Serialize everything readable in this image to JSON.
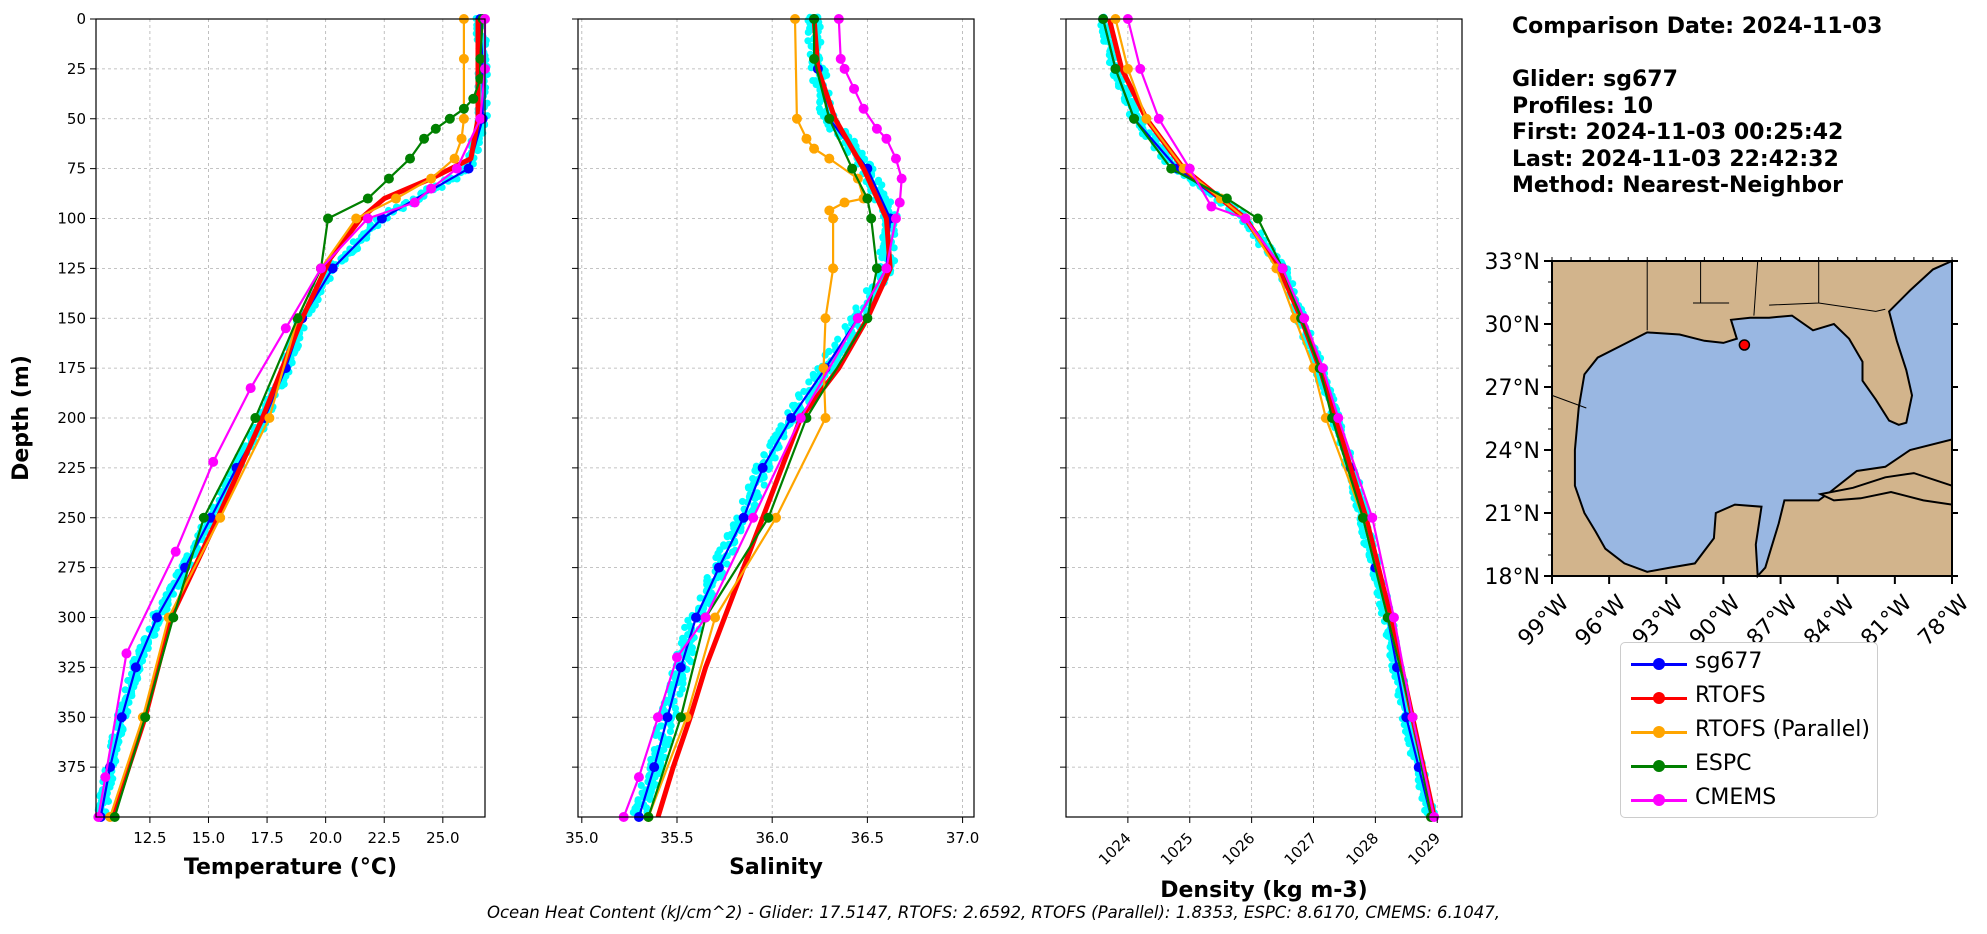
{
  "info": {
    "date_line": "Comparison Date: 2024-11-03",
    "glider_line": "Glider: sg677",
    "profiles_line": "Profiles: 10",
    "first_line": "First: 2024-11-03 00:25:42",
    "last_line": "Last: 2024-11-03 22:42:32",
    "method_line": "Method: Nearest-Neighbor"
  },
  "footer": "Ocean Heat Content (kJ/cm^2) - Glider: 17.5147,  RTOFS: 2.6592,  RTOFS (Parallel): 1.8353,  ESPC: 8.6170,  CMEMS: 6.1047,",
  "legend": [
    {
      "label": "sg677",
      "color": "#0000ff"
    },
    {
      "label": "RTOFS",
      "color": "#ff0000"
    },
    {
      "label": "RTOFS (Parallel)",
      "color": "#ffa500"
    },
    {
      "label": "ESPC",
      "color": "#008000"
    },
    {
      "label": "CMEMS",
      "color": "#ff00ff"
    }
  ],
  "colors": {
    "sg677": "#0000ff",
    "RTOFS": "#ff0000",
    "RTOFS (Parallel)": "#ffa500",
    "ESPC": "#008000",
    "CMEMS": "#ff00ff",
    "scatter": "#00ffff",
    "land": "#d2b48c",
    "ocean": "#99b7e2"
  },
  "chart_data": [
    {
      "type": "line",
      "xlabel": "Temperature (°C)",
      "ylabel": "Depth (m)",
      "xlim": [
        10.2,
        26.8
      ],
      "ylim": [
        400,
        0
      ],
      "y_inverted": true,
      "xticks": [
        "12.5",
        "15.0",
        "17.5",
        "20.0",
        "22.5",
        "25.0"
      ],
      "yticks": [
        "0",
        "25",
        "50",
        "75",
        "100",
        "125",
        "150",
        "175",
        "200",
        "225",
        "250",
        "275",
        "300",
        "325",
        "350",
        "375"
      ],
      "grid": true,
      "series": [
        {
          "name": "sg677",
          "depth": [
            0,
            25,
            50,
            75,
            100,
            125,
            150,
            175,
            200,
            225,
            250,
            275,
            300,
            325,
            350,
            375,
            400
          ],
          "values": [
            26.6,
            26.7,
            26.7,
            26.1,
            22.4,
            20.3,
            19.0,
            18.3,
            17.4,
            16.2,
            15.1,
            14.0,
            12.8,
            11.9,
            11.3,
            10.8,
            10.4
          ]
        },
        {
          "name": "RTOFS",
          "depth": [
            0,
            20,
            50,
            70,
            80,
            90,
            100,
            120,
            150,
            200,
            250,
            300,
            350,
            400
          ],
          "values": [
            26.5,
            26.5,
            26.5,
            26.2,
            24.5,
            22.5,
            21.5,
            20.2,
            19.0,
            17.3,
            15.4,
            13.4,
            12.3,
            10.9
          ]
        },
        {
          "name": "RTOFS (Parallel)",
          "depth": [
            0,
            20,
            50,
            60,
            70,
            80,
            90,
            100,
            125,
            150,
            200,
            250,
            300,
            350,
            400
          ],
          "values": [
            25.9,
            25.9,
            25.9,
            25.8,
            25.5,
            24.5,
            23.0,
            21.3,
            19.8,
            18.8,
            17.6,
            15.5,
            13.3,
            12.2,
            10.8
          ]
        },
        {
          "name": "ESPC",
          "depth": [
            0,
            20,
            30,
            40,
            45,
            50,
            55,
            60,
            70,
            80,
            90,
            100,
            125,
            150,
            200,
            250,
            300,
            350,
            400
          ],
          "values": [
            26.7,
            26.6,
            26.6,
            26.3,
            25.9,
            25.3,
            24.7,
            24.2,
            23.6,
            22.7,
            21.8,
            20.1,
            19.8,
            18.8,
            17.0,
            14.8,
            13.5,
            12.3,
            11.0
          ]
        },
        {
          "name": "CMEMS",
          "depth": [
            0,
            25,
            50,
            75,
            85,
            92,
            100,
            125,
            155,
            185,
            222,
            267,
            318,
            380,
            400
          ],
          "values": [
            26.8,
            26.8,
            26.6,
            25.6,
            24.5,
            23.8,
            21.8,
            19.8,
            18.3,
            16.8,
            15.2,
            13.6,
            11.5,
            10.6,
            10.3
          ]
        }
      ]
    },
    {
      "type": "line",
      "xlabel": "Salinity",
      "xlim": [
        34.98,
        37.06
      ],
      "ylim": [
        400,
        0
      ],
      "y_inverted": true,
      "xticks": [
        "35.0",
        "35.5",
        "36.0",
        "36.5",
        "37.0"
      ],
      "grid": true,
      "series": [
        {
          "name": "sg677",
          "depth": [
            0,
            25,
            50,
            75,
            100,
            125,
            150,
            175,
            200,
            225,
            250,
            275,
            300,
            325,
            350,
            375,
            400
          ],
          "values": [
            36.22,
            36.24,
            36.3,
            36.5,
            36.62,
            36.6,
            36.45,
            36.28,
            36.1,
            35.95,
            35.85,
            35.72,
            35.6,
            35.52,
            35.45,
            35.38,
            35.3
          ]
        },
        {
          "name": "RTOFS",
          "depth": [
            0,
            25,
            50,
            75,
            100,
            125,
            150,
            175,
            200,
            225,
            250,
            275,
            300,
            325,
            350,
            375,
            400
          ],
          "values": [
            36.22,
            36.24,
            36.33,
            36.48,
            36.6,
            36.62,
            36.5,
            36.35,
            36.15,
            36.05,
            35.95,
            35.85,
            35.75,
            35.65,
            35.57,
            35.48,
            35.4
          ]
        },
        {
          "name": "RTOFS (Parallel)",
          "depth": [
            0,
            50,
            60,
            65,
            70,
            80,
            90,
            92,
            96,
            100,
            125,
            150,
            175,
            200,
            250,
            300,
            350,
            400
          ],
          "values": [
            36.12,
            36.13,
            36.18,
            36.22,
            36.3,
            36.45,
            36.48,
            36.38,
            36.3,
            36.32,
            36.32,
            36.28,
            36.27,
            36.28,
            36.02,
            35.7,
            35.55,
            35.35
          ]
        },
        {
          "name": "ESPC",
          "depth": [
            0,
            20,
            50,
            75,
            90,
            100,
            125,
            150,
            200,
            250,
            300,
            350,
            400
          ],
          "values": [
            36.22,
            36.22,
            36.3,
            36.42,
            36.5,
            36.52,
            36.55,
            36.5,
            36.18,
            35.98,
            35.65,
            35.52,
            35.35
          ]
        },
        {
          "name": "CMEMS",
          "depth": [
            0,
            20,
            25,
            35,
            45,
            55,
            60,
            70,
            80,
            92,
            100,
            125,
            150,
            200,
            250,
            300,
            320,
            350,
            380,
            400
          ],
          "values": [
            36.35,
            36.36,
            36.38,
            36.43,
            36.48,
            36.55,
            36.6,
            36.65,
            36.68,
            36.67,
            36.65,
            36.6,
            36.45,
            36.15,
            35.9,
            35.65,
            35.5,
            35.4,
            35.3,
            35.22
          ]
        }
      ]
    },
    {
      "type": "line",
      "xlabel": "Density (kg m-3)",
      "xlim": [
        1023.0,
        1029.4
      ],
      "ylim": [
        400,
        0
      ],
      "y_inverted": true,
      "xticks": [
        "1024",
        "1025",
        "1026",
        "1027",
        "1028",
        "1029"
      ],
      "grid": true,
      "series": [
        {
          "name": "sg677",
          "depth": [
            0,
            25,
            50,
            75,
            100,
            125,
            150,
            175,
            200,
            225,
            250,
            275,
            300,
            325,
            350,
            375,
            400
          ],
          "values": [
            1023.6,
            1023.8,
            1024.1,
            1024.8,
            1025.9,
            1026.5,
            1026.8,
            1027.1,
            1027.35,
            1027.6,
            1027.8,
            1028.0,
            1028.2,
            1028.35,
            1028.5,
            1028.7,
            1028.9
          ]
        },
        {
          "name": "RTOFS",
          "depth": [
            0,
            25,
            50,
            75,
            100,
            125,
            150,
            175,
            200,
            250,
            300,
            350,
            400
          ],
          "values": [
            1023.7,
            1023.9,
            1024.3,
            1024.9,
            1025.9,
            1026.45,
            1026.8,
            1027.1,
            1027.35,
            1027.85,
            1028.25,
            1028.6,
            1028.95
          ]
        },
        {
          "name": "RTOFS (Parallel)",
          "depth": [
            0,
            25,
            50,
            75,
            90,
            100,
            125,
            150,
            175,
            200,
            250,
            300,
            350,
            400
          ],
          "values": [
            1023.8,
            1024.0,
            1024.3,
            1024.9,
            1025.5,
            1025.9,
            1026.4,
            1026.7,
            1027.0,
            1027.2,
            1027.8,
            1028.2,
            1028.6,
            1028.9
          ]
        },
        {
          "name": "ESPC",
          "depth": [
            0,
            25,
            50,
            75,
            90,
            100,
            125,
            150,
            175,
            200,
            250,
            300,
            350,
            400
          ],
          "values": [
            1023.6,
            1023.8,
            1024.1,
            1024.7,
            1025.6,
            1026.1,
            1026.5,
            1026.8,
            1027.1,
            1027.3,
            1027.8,
            1028.2,
            1028.6,
            1028.9
          ]
        },
        {
          "name": "CMEMS",
          "depth": [
            0,
            25,
            50,
            75,
            94,
            100,
            125,
            150,
            175,
            200,
            250,
            300,
            350,
            400
          ],
          "values": [
            1024.0,
            1024.2,
            1024.5,
            1025.0,
            1025.35,
            1025.9,
            1026.5,
            1026.85,
            1027.15,
            1027.4,
            1027.95,
            1028.3,
            1028.6,
            1028.95
          ]
        }
      ]
    }
  ],
  "map": {
    "lat_labels": [
      "33°N",
      "30°N",
      "27°N",
      "24°N",
      "21°N",
      "18°N"
    ],
    "lon_labels": [
      "99°W",
      "96°W",
      "93°W",
      "90°W",
      "87°W",
      "84°W",
      "81°W",
      "78°W"
    ],
    "lat_range": [
      18,
      33
    ],
    "lon_range": [
      -99,
      -78
    ],
    "glider_position": {
      "lat": 29.0,
      "lon": -88.9
    }
  }
}
